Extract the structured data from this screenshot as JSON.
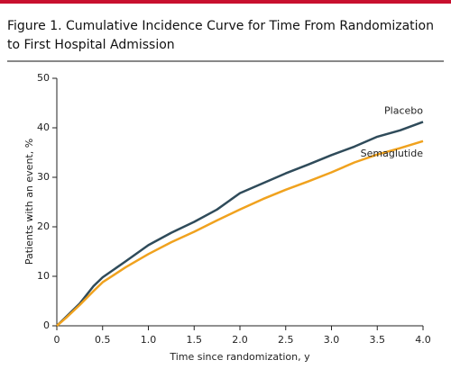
{
  "chart_data": {
    "type": "line",
    "title": [
      "Figure 1. Cumulative Incidence Curve for Time From Randomization",
      "to First Hospital Admission"
    ],
    "x_label": "Time since randomization, y",
    "y_label": "Patients with an event, %",
    "x": [
      0,
      0.1,
      0.25,
      0.4,
      0.5,
      0.75,
      1.0,
      1.25,
      1.5,
      1.75,
      2.0,
      2.25,
      2.5,
      2.75,
      3.0,
      3.25,
      3.5,
      3.75,
      4.0
    ],
    "series": [
      {
        "name": "Placebo",
        "color": "#2f4b5a",
        "values": [
          0,
          1.8,
          4.5,
          8,
          9.8,
          13,
          16.3,
          18.8,
          21,
          23.5,
          26.8,
          28.8,
          30.8,
          32.6,
          34.5,
          36.2,
          38.2,
          39.5,
          41.2
        ]
      },
      {
        "name": "Semaglutide",
        "color": "#f0a21e",
        "values": [
          0,
          1.6,
          4.2,
          7,
          8.8,
          11.8,
          14.5,
          16.9,
          19,
          21.3,
          23.5,
          25.6,
          27.5,
          29.2,
          31,
          33,
          34.6,
          35.9,
          37.3
        ]
      }
    ],
    "xlim": [
      0,
      4
    ],
    "xticks": [
      0,
      0.5,
      {
        "value": 1,
        "label": "1.0"
      },
      1.5,
      {
        "value": 2,
        "label": "2.0"
      },
      2.5,
      {
        "value": 3,
        "label": "3.0"
      },
      3.5,
      {
        "value": 4,
        "label": "4.0"
      }
    ],
    "ylim": [
      0,
      50
    ],
    "yticks": [
      0,
      10,
      20,
      30,
      40,
      50
    ]
  }
}
